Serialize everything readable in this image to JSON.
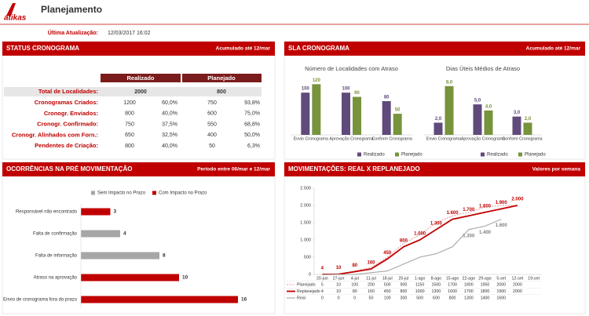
{
  "header": {
    "logo": "atikas",
    "title": "Planejamento",
    "update_label": "Última Atualização:",
    "update_value": "12/03/2017 16:02"
  },
  "panels": [
    {
      "title": "STATUS CRONOGRAMA",
      "note": "Acumulado até 12/mar"
    },
    {
      "title": "SLA CRONOGRAMA",
      "note": "Acumulado até 12/mar"
    },
    {
      "title": "OCORRÊNCIAS NA PRÉ MOVIMENTAÇÃO",
      "note": "Período entre 06/mar e 12/mar"
    },
    {
      "title": "MOVIMENTAÇÕES: REAL X REPLANEJADO",
      "note": "Valores por semana"
    }
  ],
  "status": {
    "columns": [
      "Realizado",
      "Planejado"
    ],
    "total": {
      "label": "Total de Localidades:",
      "values": [
        "2000",
        "800"
      ]
    },
    "rows": [
      {
        "label": "Cronogramas Criados:",
        "cells": [
          "1200",
          "60,0%",
          "750",
          "93,8%"
        ]
      },
      {
        "label": "Cronogr. Enviados:",
        "cells": [
          "800",
          "40,0%",
          "600",
          "75,0%"
        ]
      },
      {
        "label": "Cronogr. Confirmado:",
        "cells": [
          "750",
          "37,5%",
          "550",
          "68,8%"
        ]
      },
      {
        "label": "Cronogr. Alinhados com Forn.:",
        "cells": [
          "650",
          "32,5%",
          "400",
          "50,0%"
        ]
      },
      {
        "label": "Pendentes de Criação:",
        "cells": [
          "800",
          "40,0%",
          "50",
          "6,3%"
        ]
      }
    ]
  },
  "chart_data": [
    {
      "type": "bar",
      "title": "Número de Localidades com Atraso",
      "categories": [
        "Envio Cronograma",
        "Aprovação Cronograma",
        "Conform Cronograma"
      ],
      "series": [
        {
          "name": "Realizado",
          "color": "#604a7b",
          "values": [
            100,
            100,
            80
          ]
        },
        {
          "name": "Planejado",
          "color": "#77933c",
          "values": [
            120,
            90,
            50
          ]
        }
      ],
      "ylim": [
        0,
        130
      ]
    },
    {
      "type": "bar",
      "title": "Dias Úteis Médios de Atraso",
      "categories": [
        "Envio Cronograma",
        "Aprovação Cronograma",
        "Conform Cronograma"
      ],
      "series": [
        {
          "name": "Realizado",
          "color": "#604a7b",
          "values": [
            2,
            5,
            3
          ],
          "value_labels": [
            "2,0",
            "5,0",
            "3,0"
          ]
        },
        {
          "name": "Planejado",
          "color": "#77933c",
          "values": [
            8,
            4,
            2
          ],
          "value_labels": [
            "8,0",
            "4,0",
            "2,0"
          ]
        }
      ],
      "ylim": [
        0,
        9
      ]
    },
    {
      "type": "hbar",
      "categories": [
        "Responsável não encontrado",
        "Falta de confirmação",
        "Falta de informação",
        "Atraso na aprovação",
        "Envio de cronograma fora do prazo"
      ],
      "series": [
        {
          "name": "Sem Impacto no Prazo",
          "color": "#a6a6a6",
          "values": [
            null,
            4,
            8,
            null,
            null
          ]
        },
        {
          "name": "Com Impacto no Prazo",
          "color": "#c00000",
          "values": [
            3,
            null,
            null,
            10,
            16
          ]
        }
      ],
      "xlim": [
        0,
        16
      ]
    },
    {
      "type": "line",
      "categories": [
        "20-jun",
        "27-jun",
        "4-jul",
        "11-jul",
        "18-jul",
        "25-jul",
        "1-ago",
        "8-ago",
        "15-ago",
        "22-ago",
        "29-ago",
        "5-set",
        "12-set",
        "19-set"
      ],
      "series": [
        {
          "name": "Planejado",
          "color": "#e6a0a0",
          "dashed": true,
          "values": [
            5,
            10,
            100,
            200,
            500,
            900,
            1150,
            1500,
            1700,
            1800,
            1950,
            2000,
            2000,
            null
          ]
        },
        {
          "name": "Replanejado",
          "color": "#c00000",
          "values": [
            4,
            10,
            80,
            160,
            450,
            800,
            1000,
            1300,
            1600,
            1700,
            1800,
            1900,
            2000,
            null
          ],
          "value_labels": [
            "4",
            "10",
            "80",
            "160",
            "450",
            "800",
            "1.000",
            "1.300",
            "1.600",
            "1.700",
            "1.800",
            "1.900",
            "2.000",
            null
          ]
        },
        {
          "name": "Real",
          "color": "#a6a6a6",
          "values": [
            0,
            0,
            0,
            50,
            100,
            300,
            500,
            600,
            800,
            1300,
            1400,
            1600,
            null,
            null
          ],
          "value_labels": [
            null,
            null,
            null,
            null,
            null,
            null,
            null,
            null,
            null,
            "1.300",
            "1.400",
            "1.600",
            null,
            null
          ]
        }
      ],
      "ylim": [
        0,
        2500
      ],
      "yticks": [
        0,
        500,
        {
          "value": 1000,
          "label": "1.000"
        },
        {
          "value": 1500,
          "label": "1.500"
        },
        {
          "value": 2000,
          "label": "2.000"
        },
        {
          "value": 2500,
          "label": "2.500"
        }
      ]
    }
  ]
}
